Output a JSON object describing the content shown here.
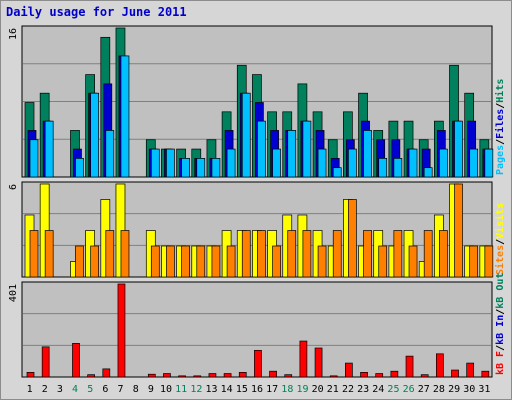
{
  "title": "Daily usage for June 2011",
  "colors": {
    "hits": "#00805c",
    "files": "#0000d0",
    "pages": "#00c0ff",
    "visits": "#ffff00",
    "sites": "#ff8000",
    "kbin": "#0000d0",
    "kbout": "#00805c",
    "kbf": "#ff0000",
    "axis_blue": "#0000cc",
    "weekend": "#00805c"
  },
  "chart_data": [
    {
      "type": "bar",
      "ymax_label": "16",
      "legend": [
        {
          "text": "Pages",
          "color": "#00c0ff"
        },
        {
          "text": "/",
          "color": "#000000"
        },
        {
          "text": "Files",
          "color": "#0000d0"
        },
        {
          "text": "/",
          "color": "#000000"
        },
        {
          "text": "Hits",
          "color": "#00805c"
        }
      ],
      "series": [
        {
          "name": "Hits",
          "values": [
            8,
            9,
            0,
            5,
            11,
            15,
            16,
            0,
            4,
            3,
            3,
            3,
            4,
            7,
            12,
            11,
            7,
            7,
            10,
            7,
            4,
            7,
            9,
            5,
            6,
            6,
            4,
            6,
            12,
            9,
            4
          ]
        },
        {
          "name": "Files",
          "values": [
            5,
            6,
            0,
            3,
            9,
            10,
            13,
            0,
            3,
            3,
            2,
            2,
            2,
            5,
            9,
            8,
            5,
            5,
            6,
            5,
            2,
            4,
            6,
            4,
            4,
            3,
            3,
            5,
            6,
            6,
            3
          ]
        },
        {
          "name": "Pages",
          "values": [
            4,
            6,
            0,
            2,
            9,
            5,
            13,
            0,
            3,
            3,
            2,
            2,
            2,
            3,
            9,
            6,
            3,
            5,
            6,
            3,
            1,
            3,
            5,
            2,
            2,
            3,
            1,
            3,
            6,
            3,
            3
          ]
        }
      ],
      "ylim": [
        0,
        16
      ]
    },
    {
      "type": "bar",
      "ymax_label": "6",
      "legend": [
        {
          "text": "Sites",
          "color": "#ff8000"
        },
        {
          "text": "/",
          "color": "#000000"
        },
        {
          "text": "Visits",
          "color": "#ffff00"
        }
      ],
      "series": [
        {
          "name": "Visits",
          "values": [
            4,
            6,
            0,
            1,
            3,
            5,
            6,
            0,
            3,
            2,
            2,
            2,
            2,
            3,
            3,
            3,
            3,
            4,
            4,
            3,
            2,
            5,
            2,
            3,
            2,
            3,
            1,
            4,
            6,
            2,
            2
          ]
        },
        {
          "name": "Sites",
          "values": [
            3,
            3,
            0,
            2,
            2,
            3,
            3,
            0,
            2,
            2,
            2,
            2,
            2,
            2,
            3,
            3,
            2,
            3,
            3,
            2,
            3,
            5,
            3,
            2,
            3,
            2,
            3,
            3,
            6,
            2,
            2
          ]
        }
      ],
      "ylim": [
        0,
        6
      ]
    },
    {
      "type": "bar",
      "ymax_label": "401",
      "legend": [
        {
          "text": "kB F",
          "color": "#ff0000"
        },
        {
          "text": "/",
          "color": "#000000"
        },
        {
          "text": "kB In",
          "color": "#0000d0"
        },
        {
          "text": "/",
          "color": "#000000"
        },
        {
          "text": "kB Out",
          "color": "#00805c"
        }
      ],
      "series": [
        {
          "name": "kB F",
          "values": [
            20,
            130,
            0,
            145,
            10,
            35,
            401,
            0,
            12,
            15,
            5,
            5,
            15,
            15,
            20,
            115,
            25,
            10,
            155,
            125,
            5,
            60,
            20,
            15,
            25,
            90,
            10,
            100,
            30,
            60,
            25
          ]
        }
      ],
      "ylim": [
        0,
        401
      ]
    }
  ],
  "x_axis": {
    "days": [
      "1",
      "2",
      "3",
      "4",
      "5",
      "6",
      "7",
      "8",
      "9",
      "10",
      "11",
      "12",
      "13",
      "14",
      "15",
      "16",
      "17",
      "18",
      "19",
      "20",
      "21",
      "22",
      "23",
      "24",
      "25",
      "26",
      "27",
      "28",
      "29",
      "30",
      "31"
    ],
    "weekend_days": [
      "4",
      "5",
      "11",
      "12",
      "18",
      "19",
      "25",
      "26"
    ]
  }
}
